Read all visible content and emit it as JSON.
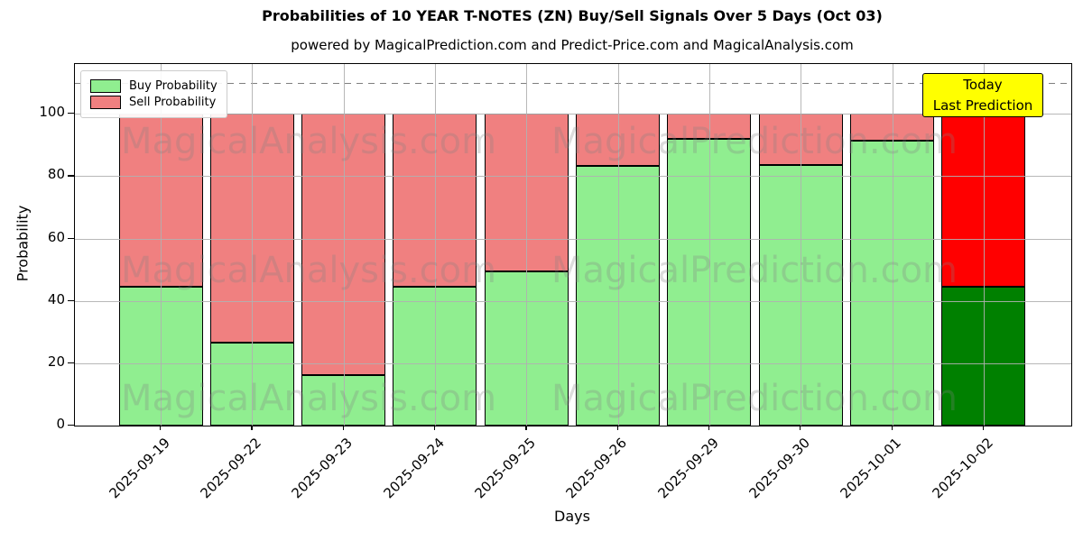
{
  "title": "Probabilities of 10 YEAR T-NOTES (ZN) Buy/Sell Signals Over 5 Days (Oct 03)",
  "subtitle": "powered by MagicalPrediction.com and Predict-Price.com and MagicalAnalysis.com",
  "annotation": {
    "line1": "Today",
    "line2": "Last Prediction",
    "bg_color": "#ffff00"
  },
  "watermarks": {
    "left": "MagicalAnalysis.com",
    "right": "MagicalPrediction.com"
  },
  "legend": [
    {
      "label": "Buy Probability",
      "color": "#90EE90"
    },
    {
      "label": "Sell Probability",
      "color": "#F08080"
    }
  ],
  "chart_data": {
    "type": "bar",
    "stacked": true,
    "title": "Probabilities of 10 YEAR T-NOTES (ZN) Buy/Sell Signals Over 5 Days (Oct 03)",
    "xlabel": "Days",
    "ylabel": "Probability",
    "categories": [
      "2025-09-19",
      "2025-09-22",
      "2025-09-23",
      "2025-09-24",
      "2025-09-25",
      "2025-09-26",
      "2025-09-29",
      "2025-09-30",
      "2025-10-01",
      "2025-10-02"
    ],
    "series": [
      {
        "name": "Buy Probability",
        "color": "#90EE90",
        "last_bar_color": "#008000",
        "values": [
          44.5,
          26.5,
          16.3,
          44.6,
          49.4,
          83.2,
          92.0,
          83.5,
          91.3,
          44.6
        ]
      },
      {
        "name": "Sell Probability",
        "color": "#F08080",
        "last_bar_color": "#FF0000",
        "values": [
          55.5,
          73.5,
          83.7,
          55.4,
          50.6,
          16.8,
          8.0,
          16.5,
          8.7,
          55.4
        ]
      }
    ],
    "ylim": [
      0,
      116
    ],
    "yticks": [
      0,
      20,
      40,
      60,
      80,
      100
    ],
    "dashed_line_y": 110,
    "grid": true,
    "legend_position": "upper left",
    "bar_totals": 100
  }
}
